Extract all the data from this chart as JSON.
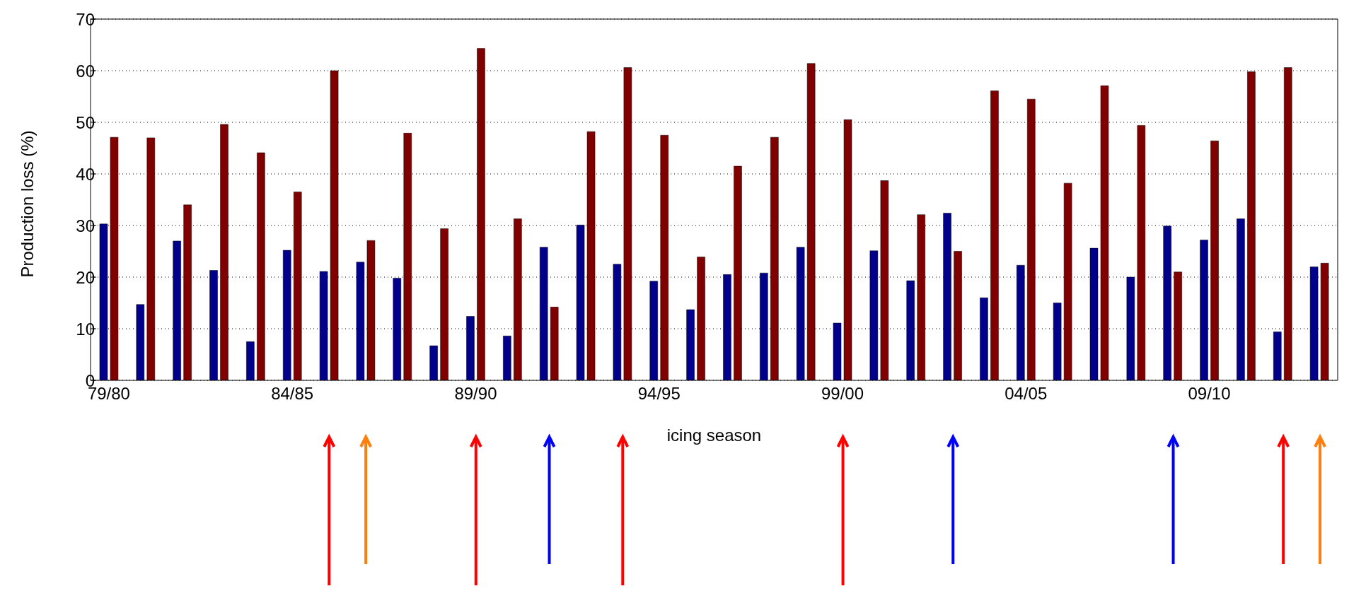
{
  "chart_data": {
    "type": "bar",
    "xlabel": "icing season",
    "ylabel": "Production loss (%)",
    "categories": [
      "79/80",
      null,
      null,
      null,
      null,
      "84/85",
      null,
      null,
      null,
      null,
      "89/90",
      null,
      null,
      null,
      null,
      "94/95",
      null,
      null,
      null,
      null,
      "99/00",
      null,
      null,
      null,
      null,
      "04/05",
      null,
      null,
      null,
      null,
      "09/10",
      null,
      null,
      null
    ],
    "series": [
      {
        "color": "#00008b",
        "values": [
          30.3,
          14.7,
          27,
          21.3,
          7.5,
          25.2,
          21.1,
          22.9,
          19.8,
          6.7,
          12.4,
          8.6,
          25.8,
          30.1,
          22.5,
          19.2,
          13.7,
          20.5,
          20.8,
          25.8,
          11.1,
          25.1,
          19.3,
          32.4,
          16,
          22.3,
          15,
          25.6,
          20,
          29.9,
          27.2,
          31.3,
          9.4,
          22
        ]
      },
      {
        "color": "#800000",
        "values": [
          47.1,
          47,
          34,
          49.6,
          44.1,
          36.5,
          60,
          27.1,
          47.9,
          29.4,
          64.3,
          31.3,
          14.2,
          48.2,
          60.6,
          47.5,
          23.9,
          41.5,
          47.1,
          61.4,
          50.5,
          38.7,
          32.1,
          25,
          56.1,
          54.5,
          38.2,
          57.1,
          49.4,
          21,
          46.4,
          59.8,
          60.6,
          22.7
        ]
      }
    ],
    "ylim": [
      0,
      70
    ],
    "yticks": [
      0,
      10,
      20,
      30,
      40,
      50,
      60,
      70
    ],
    "grid": "y",
    "legend": false
  }
}
